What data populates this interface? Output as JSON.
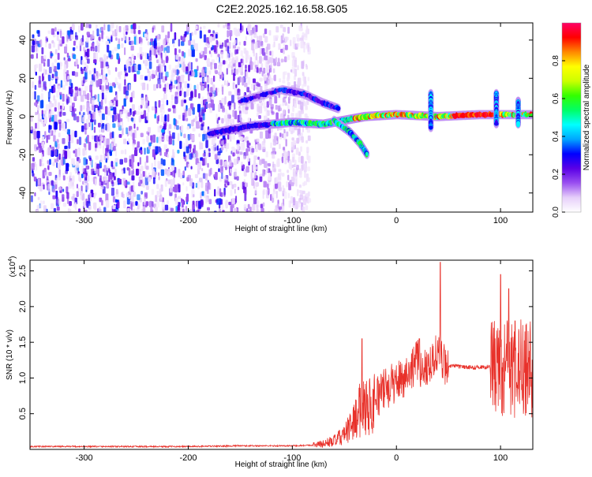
{
  "title": "C2E2.2025.162.16.58.G05",
  "chart_data": [
    {
      "type": "heatmap",
      "xlabel": "Height of straight line (km)",
      "ylabel": "Frequency (Hz)",
      "xlim": [
        -352,
        131
      ],
      "ylim": [
        -50,
        49
      ],
      "xticks": [
        -300,
        -200,
        -100,
        0,
        100
      ],
      "yticks": [
        -40,
        -20,
        0,
        20,
        40
      ],
      "colorbar": {
        "label": "Normalized spectral amplitude",
        "range": [
          0,
          1
        ],
        "ticks": [
          0.0,
          0.2,
          0.4,
          0.6,
          0.8
        ],
        "tick_labels": [
          "0.0",
          "0.2",
          "0.4",
          "0.6",
          "0.8"
        ],
        "colormap": [
          "#ffffff",
          "#e6cffa",
          "#9a4ff0",
          "#5a00e6",
          "#0000ff",
          "#00a6ff",
          "#00ffff",
          "#00ff66",
          "#33ff00",
          "#ccff00",
          "#ffff00",
          "#ff8800",
          "#ff0000",
          "#ff0066"
        ]
      },
      "features": [
        {
          "name": "main-trace",
          "points": [
            [
              -180,
              -9
            ],
            [
              -140,
              -5
            ],
            [
              -100,
              -3
            ],
            [
              -70,
              -4
            ],
            [
              -50,
              -2
            ],
            [
              -30,
              0
            ],
            [
              0,
              1
            ],
            [
              40,
              0
            ],
            [
              80,
              1
            ],
            [
              131,
              1
            ]
          ],
          "amplitude": 0.8
        },
        {
          "name": "upper-branch",
          "points": [
            [
              -150,
              8
            ],
            [
              -110,
              14
            ],
            [
              -90,
              12
            ],
            [
              -70,
              7
            ],
            [
              -55,
              4
            ]
          ],
          "amplitude": 0.3
        },
        {
          "name": "lower-branch",
          "points": [
            [
              -60,
              -2
            ],
            [
              -45,
              -8
            ],
            [
              -35,
              -14
            ],
            [
              -28,
              -20
            ]
          ],
          "amplitude": 0.5
        },
        {
          "name": "spike-a",
          "points": [
            [
              33,
              12
            ],
            [
              33,
              -6
            ]
          ],
          "amplitude": 0.4
        },
        {
          "name": "spike-b",
          "points": [
            [
              96,
              12
            ],
            [
              96,
              -4
            ]
          ],
          "amplitude": 0.4
        },
        {
          "name": "spike-c",
          "points": [
            [
              117,
              8
            ],
            [
              117,
              -4
            ]
          ],
          "amplitude": 0.4
        }
      ]
    },
    {
      "type": "line",
      "xlabel": "Height of straight line (km)",
      "ylabel": "SNR (10 * v/v)",
      "y_multiplier": "(x10",
      "y_multiplier_exp": "4",
      "y_multiplier_close": ")",
      "xlim": [
        -352,
        131
      ],
      "ylim": [
        0,
        2.65
      ],
      "xticks": [
        -300,
        -200,
        -100,
        0,
        100
      ],
      "yticks": [
        0.5,
        1.0,
        1.5,
        2.0,
        2.5
      ],
      "ytick_labels": [
        "0.5",
        "1.0",
        "1.5",
        "2.0",
        "2.5"
      ],
      "color": "#e8312a",
      "series": [
        {
          "x": [
            -352,
            -300,
            -250,
            -200,
            -150,
            -120,
            -100,
            -80,
            -70,
            -60,
            -50,
            -45,
            -40,
            -35,
            -30,
            -25,
            -20,
            -15,
            -10,
            -5,
            0,
            5,
            10,
            15,
            20,
            25,
            30,
            35,
            40,
            45,
            50,
            60,
            70,
            80,
            90,
            95,
            100,
            105,
            110,
            115,
            120,
            125,
            131
          ],
          "y": [
            0.04,
            0.04,
            0.04,
            0.04,
            0.05,
            0.05,
            0.05,
            0.06,
            0.08,
            0.12,
            0.2,
            0.3,
            0.42,
            0.55,
            0.65,
            0.6,
            0.72,
            0.8,
            0.85,
            0.9,
            0.95,
            1.0,
            1.05,
            1.15,
            1.25,
            1.1,
            1.2,
            1.25,
            1.4,
            1.2,
            1.17,
            1.16,
            1.15,
            1.15,
            1.16,
            1.1,
            1.2,
            1.1,
            1.15,
            1.1,
            1.15,
            1.16,
            1.14
          ]
        }
      ],
      "spikes": [
        [
          -33,
          1.55
        ],
        [
          22,
          1.55
        ],
        [
          42,
          2.62
        ],
        [
          100,
          2.45
        ],
        [
          108,
          2.25
        ],
        [
          114,
          1.8
        ]
      ]
    }
  ]
}
